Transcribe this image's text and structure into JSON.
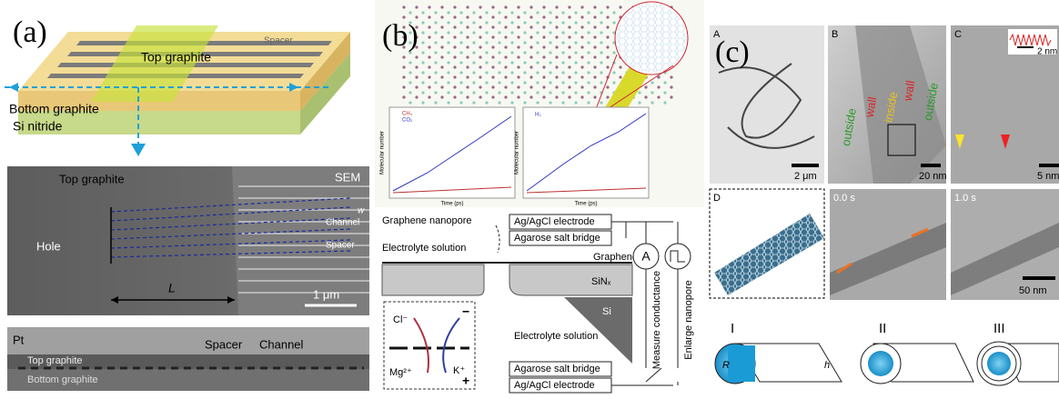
{
  "panel_a": {
    "label": "(a)",
    "schematic": {
      "top": "Top graphite",
      "spacer": "Spacer",
      "bottom": "Bottom graphite",
      "substrate": "Si nitride"
    },
    "sem": {
      "top": "Top graphite",
      "mode": "SEM",
      "hole": "Hole",
      "channel": "Channel",
      "width": "w",
      "spacer": "Spacer",
      "length": "L",
      "scale": "1 μm"
    },
    "cross_section": {
      "coating": "Pt",
      "top": "Top graphite",
      "spacer": "Spacer",
      "channel": "Channel",
      "bottom": "Bottom graphite"
    }
  },
  "panel_b": {
    "label": "(b)",
    "plot_left": {
      "y_label": "Molecular number",
      "x_label": "Time (ps)",
      "legend": [
        "CH₄",
        "CO₂"
      ]
    },
    "plot_right": {
      "y_label": "Molecular number",
      "x_label": "Time (ps)",
      "legend": [
        "H₂"
      ]
    },
    "setup": {
      "nanopore": "Graphene nanopore",
      "electrode_top": "Ag/AgCl electrode",
      "bridge_top": "Agarose salt bridge",
      "electrolyte_top": "Electrolyte solution",
      "graphene": "Graphene",
      "sinx": "SiNₓ",
      "si": "Si",
      "electrolyte_bottom": "Electrolyte solution",
      "ammeter": "A",
      "measure": "Measure conductance",
      "enlarge": "Enlarge nanopore",
      "chloride": "Cl⁻",
      "potassium": "K⁺",
      "magnesium": "Mg²⁺",
      "minus": "−",
      "plus": "+",
      "bridge_bottom": "Agarose salt bridge",
      "electrode_bottom": "Ag/AgCl electrode"
    }
  },
  "panel_c": {
    "label": "(c)",
    "tem": [
      {
        "letter": "A",
        "scale": "2 μm"
      },
      {
        "letter": "B",
        "scale": "20 nm"
      },
      {
        "letter": "C",
        "scale": "5 nm",
        "inset_scale": "2 nm"
      }
    ],
    "zones": [
      "outside",
      "wall",
      "inside",
      "wall",
      "outside"
    ],
    "model": "D",
    "frames": [
      {
        "time": "0.0 s"
      },
      {
        "time": "1.0 s",
        "scale": "50 nm"
      }
    ],
    "rolling": {
      "steps": [
        "I",
        "II",
        "III"
      ],
      "radius": "R",
      "height": "h"
    }
  }
}
